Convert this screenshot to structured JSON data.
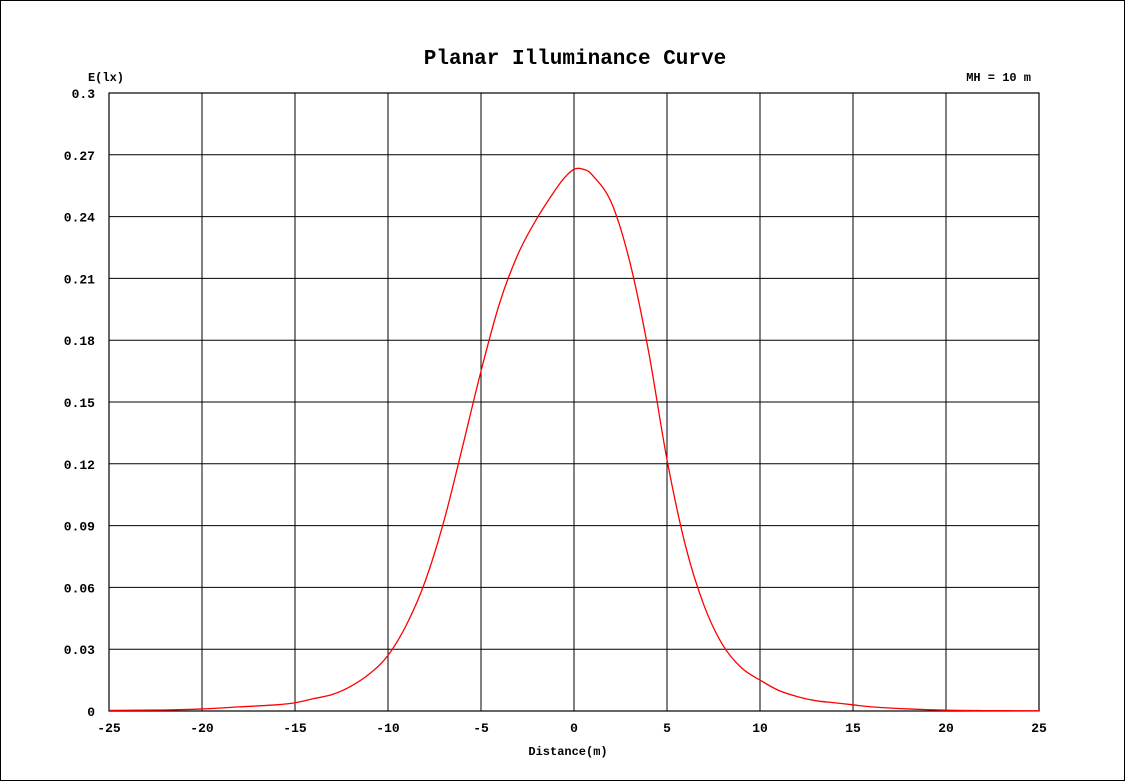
{
  "chart_data": {
    "type": "line",
    "title": "Planar Illuminance Curve",
    "annotation": "MH = 10 m",
    "xlabel": "Distance(m)",
    "ylabel": "E(lx)",
    "xlim": [
      -25,
      25
    ],
    "ylim": [
      0,
      0.3
    ],
    "xticks": [
      "-25",
      "-20",
      "-15",
      "-10",
      "-5",
      "0",
      "5",
      "10",
      "15",
      "20",
      "25"
    ],
    "yticks": [
      "0",
      "0.03",
      "0.06",
      "0.09",
      "0.12",
      "0.15",
      "0.18",
      "0.21",
      "0.24",
      "0.27",
      "0.3"
    ],
    "grid": true,
    "series_color": "#ff0000",
    "series": [
      {
        "x": [
          -25,
          -22,
          -20,
          -18,
          -16,
          -15,
          -14,
          -13,
          -12,
          -11,
          -10,
          -9,
          -8,
          -7,
          -6,
          -5,
          -4,
          -3,
          -2,
          -1,
          -0.5,
          0,
          0.5,
          1,
          2,
          3,
          4,
          5,
          6,
          7,
          8,
          9,
          10,
          11,
          12,
          13,
          14,
          15,
          16,
          18,
          20,
          22,
          25
        ],
        "y": [
          0.0003,
          0.0005,
          0.001,
          0.002,
          0.003,
          0.004,
          0.006,
          0.008,
          0.012,
          0.018,
          0.027,
          0.042,
          0.063,
          0.092,
          0.128,
          0.165,
          0.198,
          0.222,
          0.239,
          0.253,
          0.259,
          0.263,
          0.263,
          0.26,
          0.247,
          0.218,
          0.175,
          0.122,
          0.08,
          0.051,
          0.032,
          0.021,
          0.015,
          0.01,
          0.007,
          0.005,
          0.004,
          0.003,
          0.002,
          0.001,
          0.0004,
          0.0002,
          0.0001
        ]
      }
    ]
  }
}
